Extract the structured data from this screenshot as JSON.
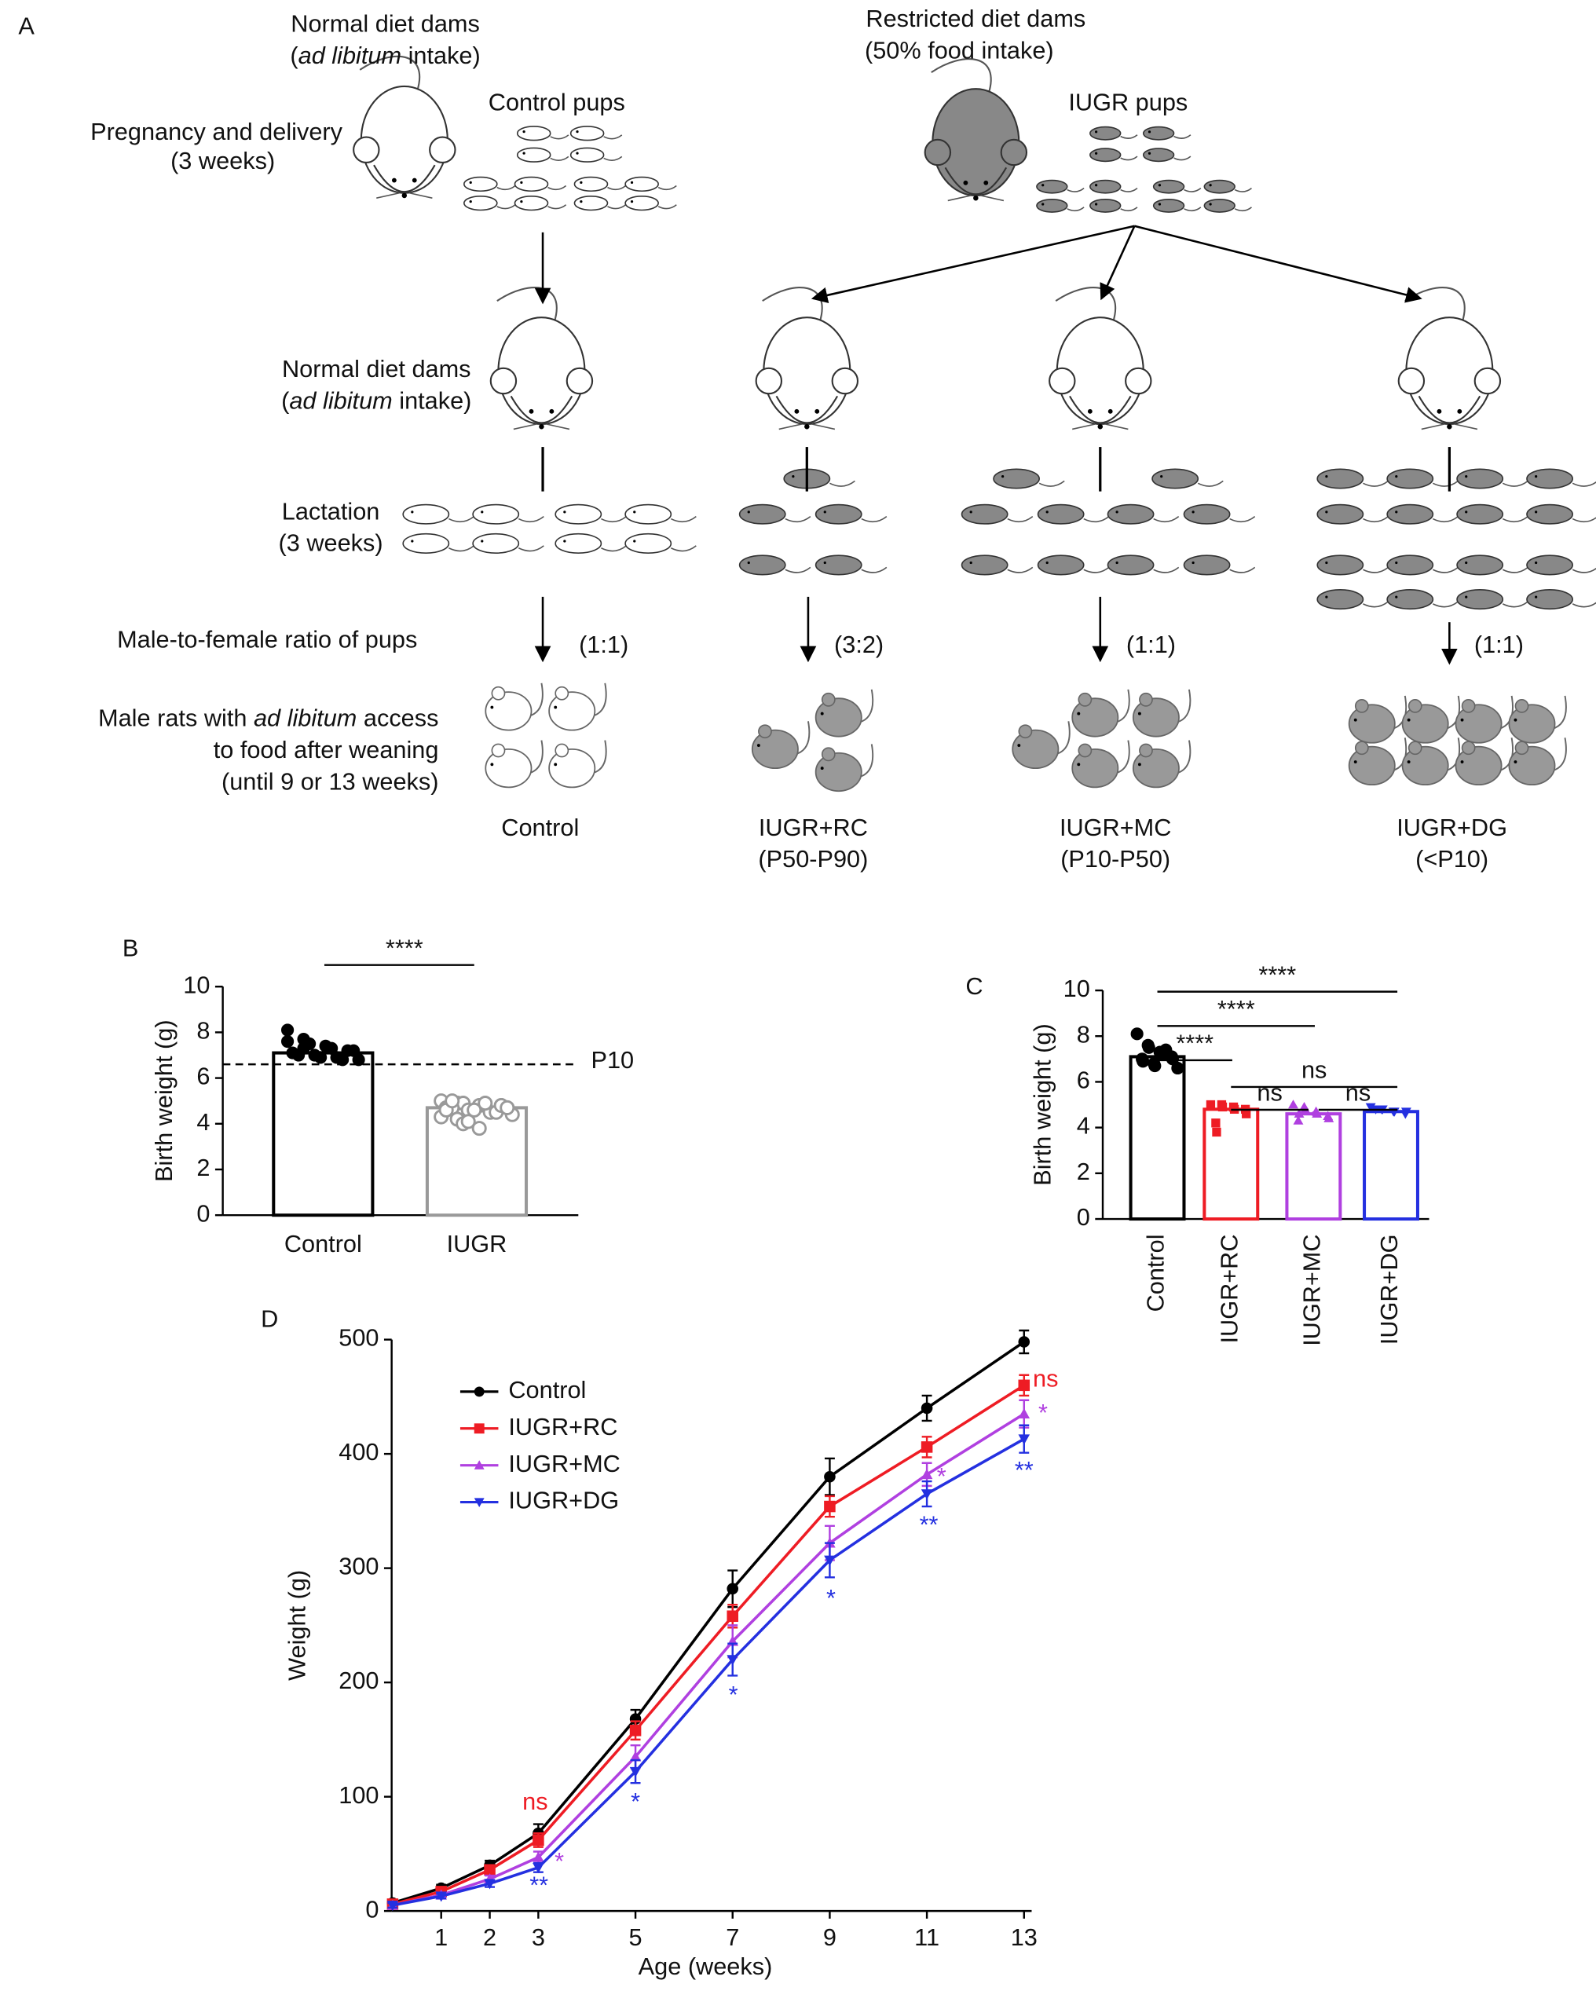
{
  "panel_labels": [
    "A",
    "B",
    "C",
    "D"
  ],
  "diagram": {
    "dams_normal": [
      "Normal diet dams",
      [
        "(",
        "ad libitum",
        " intake)"
      ]
    ],
    "dams_restricted": [
      "Restricted diet dams",
      "(50% food intake)"
    ],
    "pregnancy": [
      "Pregnancy and delivery",
      "(3 weeks)"
    ],
    "control_pups": "Control pups",
    "iugr_pups": "IUGR pups",
    "lactation_dams": [
      "Normal diet dams",
      [
        "(",
        "ad libitum",
        " intake)"
      ]
    ],
    "lactation": [
      "Lactation",
      "(3 weeks)"
    ],
    "ratio_label": "Male-to-female ratio of pups",
    "ratios": [
      "(1:1)",
      "(3:2)",
      "(1:1)",
      "(1:1)"
    ],
    "male_rats": [
      [
        "Male rats with ",
        "ad libitum",
        " access"
      ],
      "to food after weaning",
      "(until 9 or 13 weeks)"
    ],
    "groups": [
      [
        "Control"
      ],
      [
        "IUGR+RC",
        "(P50-P90)"
      ],
      [
        "IUGR+MC",
        "(P10-P50)"
      ],
      [
        "IUGR+DG",
        "(<P10)"
      ]
    ]
  },
  "chart_data": [
    {
      "type": "bar",
      "ylabel": "Birth weight (g)",
      "categories": [
        "Control",
        "IUGR"
      ],
      "values": [
        7.1,
        4.7
      ],
      "colors": [
        "#000000",
        "#999999"
      ],
      "ylim": [
        0,
        10
      ],
      "yticks": [
        0,
        2,
        4,
        6,
        8,
        10
      ],
      "points": [
        [
          8.1,
          7.7,
          7.5,
          7.4,
          7.3,
          7.2,
          7.2,
          7.1,
          7.0,
          7.0,
          6.9,
          6.9,
          6.8,
          6.8,
          7.6,
          7.3
        ],
        [
          5.0,
          4.9,
          4.9,
          4.8,
          4.8,
          4.8,
          4.7,
          4.7,
          4.7,
          4.6,
          4.6,
          4.5,
          4.5,
          4.4,
          4.3,
          4.2,
          4.0,
          3.8,
          4.9,
          4.8,
          4.7,
          4.6,
          5.0,
          4.1
        ]
      ],
      "reference_line": {
        "value": 6.6,
        "label": "P10"
      },
      "significance": "****"
    },
    {
      "type": "bar",
      "ylabel": "Birth weight (g)",
      "categories": [
        "Control",
        "IUGR+RC",
        "IUGR+MC",
        "IUGR+DG"
      ],
      "values": [
        7.1,
        4.8,
        4.6,
        4.7
      ],
      "errors": [
        0.12,
        0.13,
        0.1,
        0.05
      ],
      "colors": [
        "#000000",
        "#ee1c24",
        "#b040e0",
        "#2430e0"
      ],
      "ylim": [
        0,
        10
      ],
      "yticks": [
        0,
        2,
        4,
        6,
        8,
        10
      ],
      "points": [
        [
          8.1,
          7.6,
          7.5,
          7.3,
          7.2,
          7.1,
          7.0,
          7.0,
          6.9,
          6.8,
          6.7,
          7.4,
          7.2,
          6.6
        ],
        [
          5.0,
          5.0,
          4.9,
          4.9,
          4.8,
          4.8,
          4.6,
          4.2,
          3.8
        ],
        [
          5.0,
          4.9,
          4.8,
          4.7,
          4.6,
          4.5,
          4.4,
          4.3,
          4.6
        ],
        [
          4.9,
          4.8,
          4.8,
          4.7,
          4.7,
          4.6,
          4.7,
          4.8
        ]
      ],
      "significance": [
        "****",
        "****",
        "****",
        "ns",
        "ns",
        "ns"
      ]
    },
    {
      "type": "line",
      "xlabel": "Age (weeks)",
      "ylabel": "Weight (g)",
      "x": [
        0,
        1,
        2,
        3,
        5,
        7,
        9,
        11,
        13
      ],
      "xlim": [
        0,
        13
      ],
      "xticks": [
        1,
        2,
        3,
        5,
        7,
        9,
        11,
        13
      ],
      "ylim": [
        0,
        500
      ],
      "yticks": [
        0,
        100,
        200,
        300,
        400,
        500
      ],
      "series": [
        {
          "name": "Control",
          "color": "#000000",
          "marker": "circle",
          "values": [
            7,
            20,
            40,
            68,
            168,
            282,
            380,
            440,
            498
          ],
          "errors": [
            2,
            3,
            4,
            8,
            8,
            16,
            16,
            11,
            10
          ]
        },
        {
          "name": "IUGR+RC",
          "color": "#ee1c24",
          "marker": "square",
          "values": [
            6,
            17,
            36,
            62,
            158,
            258,
            354,
            406,
            460
          ],
          "errors": [
            2,
            3,
            4,
            6,
            8,
            10,
            9,
            9,
            9
          ]
        },
        {
          "name": "IUGR+MC",
          "color": "#b040e0",
          "marker": "triangle-up",
          "values": [
            5,
            14,
            28,
            47,
            135,
            236,
            322,
            382,
            435
          ],
          "errors": [
            2,
            2,
            3,
            5,
            10,
            14,
            15,
            10,
            12
          ]
        },
        {
          "name": "IUGR+DG",
          "color": "#2430e0",
          "marker": "triangle-down",
          "values": [
            5,
            13,
            24,
            38,
            122,
            220,
            307,
            365,
            413
          ],
          "errors": [
            2,
            2,
            3,
            4,
            10,
            14,
            15,
            11,
            12
          ]
        }
      ],
      "annotations": [
        {
          "x": 3,
          "text": "ns",
          "color": "#ee1c24"
        },
        {
          "x": 3,
          "text": "*",
          "color": "#b040e0"
        },
        {
          "x": 3,
          "text": "**",
          "color": "#2430e0"
        },
        {
          "x": 5,
          "text": "*",
          "color": "#2430e0"
        },
        {
          "x": 7,
          "text": "*",
          "color": "#2430e0"
        },
        {
          "x": 9,
          "text": "*",
          "color": "#2430e0"
        },
        {
          "x": 11,
          "text": "*",
          "color": "#b040e0"
        },
        {
          "x": 11,
          "text": "**",
          "color": "#2430e0"
        },
        {
          "x": 13,
          "text": "ns",
          "color": "#ee1c24"
        },
        {
          "x": 13,
          "text": "*",
          "color": "#b040e0"
        },
        {
          "x": 13,
          "text": "**",
          "color": "#2430e0"
        }
      ]
    }
  ]
}
